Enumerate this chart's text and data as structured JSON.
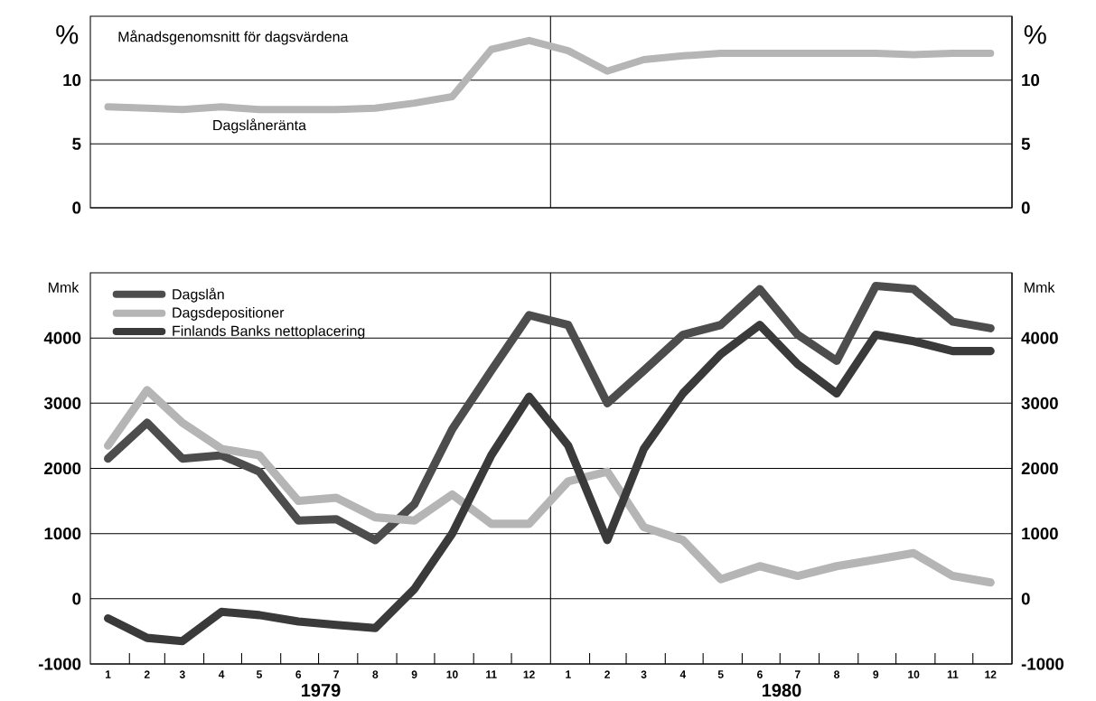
{
  "chart_data": [
    {
      "type": "line",
      "ylabel": "%",
      "y2label": "%",
      "annotations": [
        "Månadsgenomsnitt för dagsvärdena"
      ],
      "x": [
        "1979-01-15",
        "1979-02-15",
        "1979-03-15",
        "1979-04-15",
        "1979-05-15",
        "1979-06-15",
        "1979-07-15",
        "1979-08-15",
        "1979-09-15",
        "1979-10-15",
        "1979-11-15",
        "1979-12-15",
        "1980-01-15",
        "1980-02-15",
        "1980-03-15",
        "1980-04-15",
        "1980-05-15",
        "1980-06-15",
        "1980-07-15",
        "1980-08-15",
        "1980-09-15",
        "1980-10-15",
        "1980-11-15",
        "1980-12-15"
      ],
      "xlim": [
        "1979-01-01",
        "1981-01-01"
      ],
      "ylim": [
        0,
        15
      ],
      "yticks": [
        0,
        5,
        10
      ],
      "y2lim": [
        0,
        15
      ],
      "y2ticks": [
        0,
        5,
        10
      ],
      "series": [
        {
          "name": "Dagslåneränta",
          "color": "#b5b5b5",
          "values": [
            7.9,
            7.8,
            7.7,
            7.9,
            7.7,
            7.7,
            7.7,
            7.8,
            8.2,
            8.7,
            12.4,
            13.1,
            12.3,
            10.7,
            11.6,
            11.9,
            12.1,
            12.1,
            12.1,
            12.1,
            12.1,
            12.0,
            12.1,
            12.1
          ]
        }
      ],
      "grid": "y",
      "ref_lines": [
        {
          "axis": "x",
          "value": "1980-01-01"
        }
      ],
      "tick_labels": "y",
      "line_style": "solid"
    },
    {
      "type": "line",
      "ylabel": "Mmk",
      "y2label": "Mmk",
      "annotations": [
        "1979",
        "1980"
      ],
      "x": [
        "1979-01-15",
        "1979-02-15",
        "1979-03-15",
        "1979-04-15",
        "1979-05-15",
        "1979-06-15",
        "1979-07-15",
        "1979-08-15",
        "1979-09-15",
        "1979-10-15",
        "1979-11-15",
        "1979-12-15",
        "1980-01-15",
        "1980-02-15",
        "1980-03-15",
        "1980-04-15",
        "1980-05-15",
        "1980-06-15",
        "1980-07-15",
        "1980-08-15",
        "1980-09-15",
        "1980-10-15",
        "1980-11-15",
        "1980-12-15"
      ],
      "xlim": [
        "1979-01-01",
        "1981-01-01"
      ],
      "xticks": [
        {
          "value": "1979-01-15",
          "label": "1"
        },
        {
          "value": "1979-02-15",
          "label": "2"
        },
        {
          "value": "1979-03-15",
          "label": "3"
        },
        {
          "value": "1979-04-15",
          "label": "4"
        },
        {
          "value": "1979-05-15",
          "label": "5"
        },
        {
          "value": "1979-06-15",
          "label": "6"
        },
        {
          "value": "1979-07-15",
          "label": "7"
        },
        {
          "value": "1979-08-15",
          "label": "8"
        },
        {
          "value": "1979-09-15",
          "label": "9"
        },
        {
          "value": "1979-10-15",
          "label": "10"
        },
        {
          "value": "1979-11-15",
          "label": "11"
        },
        {
          "value": "1979-12-15",
          "label": "12"
        },
        {
          "value": "1980-01-15",
          "label": "1"
        },
        {
          "value": "1980-02-15",
          "label": "2"
        },
        {
          "value": "1980-03-15",
          "label": "3"
        },
        {
          "value": "1980-04-15",
          "label": "4"
        },
        {
          "value": "1980-05-15",
          "label": "5"
        },
        {
          "value": "1980-06-15",
          "label": "6"
        },
        {
          "value": "1980-07-15",
          "label": "7"
        },
        {
          "value": "1980-08-15",
          "label": "8"
        },
        {
          "value": "1980-09-15",
          "label": "9"
        },
        {
          "value": "1980-10-15",
          "label": "10"
        },
        {
          "value": "1980-11-15",
          "label": "11"
        },
        {
          "value": "1980-12-15",
          "label": "12"
        },
        {
          "value": "1979-02-01",
          "label": null
        },
        {
          "value": "1979-03-01",
          "label": null
        },
        {
          "value": "1979-04-01",
          "label": null
        },
        {
          "value": "1979-05-01",
          "label": null
        },
        {
          "value": "1979-06-01",
          "label": null
        },
        {
          "value": "1979-07-01",
          "label": null
        },
        {
          "value": "1979-08-01",
          "label": null
        },
        {
          "value": "1979-09-01",
          "label": null
        },
        {
          "value": "1979-10-01",
          "label": null
        },
        {
          "value": "1979-11-01",
          "label": null
        },
        {
          "value": "1979-12-01",
          "label": null
        },
        {
          "value": "1980-02-01",
          "label": null
        },
        {
          "value": "1980-03-01",
          "label": null
        },
        {
          "value": "1980-04-01",
          "label": null
        },
        {
          "value": "1980-05-01",
          "label": null
        },
        {
          "value": "1980-06-01",
          "label": null
        },
        {
          "value": "1980-07-01",
          "label": null
        },
        {
          "value": "1980-08-01",
          "label": null
        },
        {
          "value": "1980-09-01",
          "label": null
        },
        {
          "value": "1980-10-01",
          "label": null
        },
        {
          "value": "1980-11-01",
          "label": null
        },
        {
          "value": "1980-12-01",
          "label": null
        }
      ],
      "ylim": [
        -1000,
        5000
      ],
      "yticks": [
        -1000,
        0,
        1000,
        2000,
        3000,
        4000
      ],
      "y2lim": [
        -1000,
        5000
      ],
      "y2ticks": [
        -1000,
        0,
        1000,
        2000,
        3000,
        4000
      ],
      "series": [
        {
          "name": "Dagslån",
          "color": "#4d4d4d",
          "values": [
            2150,
            2700,
            2150,
            2200,
            1950,
            1200,
            1220,
            900,
            1450,
            2600,
            3500,
            4350,
            4200,
            3000,
            3500,
            4050,
            4200,
            4750,
            4050,
            3650,
            4800,
            4750,
            4250,
            4150
          ]
        },
        {
          "name": "Dagsdepositioner",
          "color": "#b5b5b5",
          "values": [
            2350,
            3200,
            2700,
            2300,
            2200,
            1500,
            1550,
            1250,
            1200,
            1600,
            1150,
            1150,
            1800,
            1950,
            1100,
            900,
            300,
            500,
            350,
            500,
            600,
            700,
            350,
            250
          ]
        },
        {
          "name": "Finlands Banks nettoplacering",
          "color": "#3a3a3a",
          "values": [
            -300,
            -600,
            -650,
            -200,
            -250,
            -350,
            -400,
            -450,
            150,
            1000,
            2200,
            3100,
            2350,
            900,
            2300,
            3150,
            3750,
            4200,
            3600,
            3150,
            4050,
            3950,
            3800,
            3800
          ]
        }
      ],
      "grid": "y",
      "legend": "top left",
      "ref_lines": [
        {
          "axis": "x",
          "value": "1980-01-01"
        }
      ],
      "line_style": "solid"
    }
  ]
}
